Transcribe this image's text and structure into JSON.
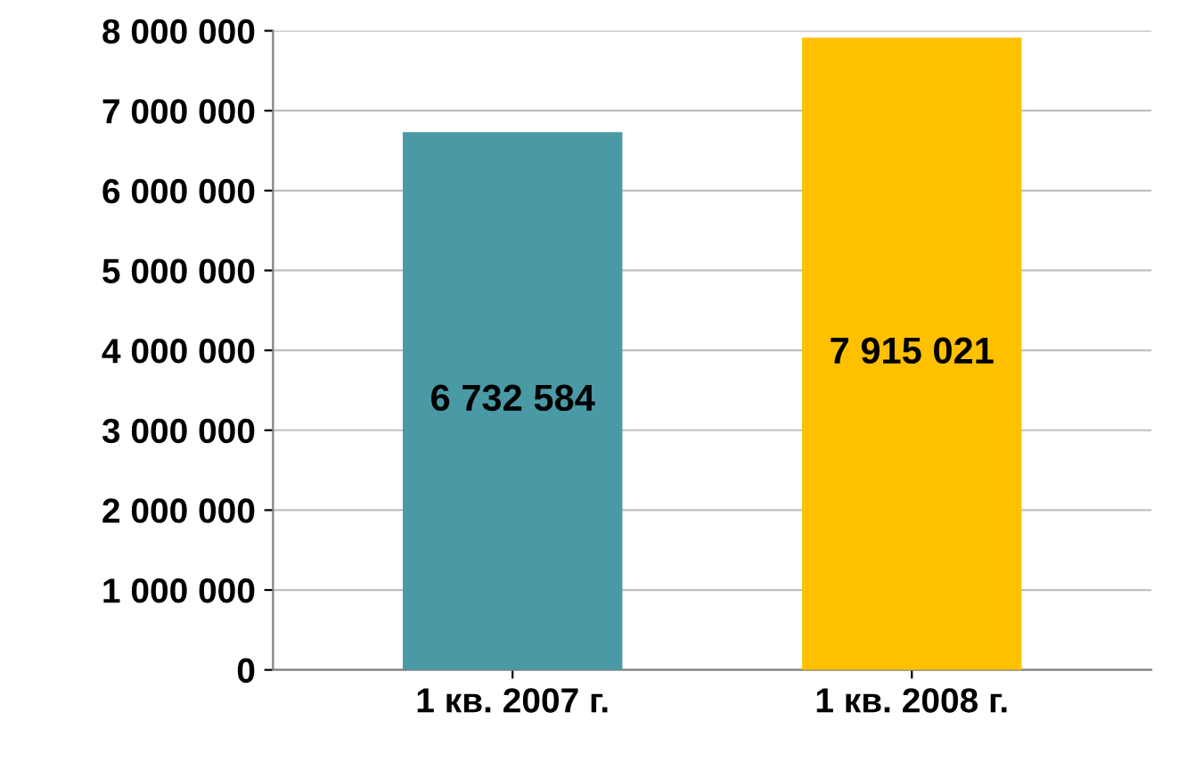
{
  "chart_data": {
    "type": "bar",
    "categories": [
      "1 кв. 2007 г.",
      "1 кв. 2008 г."
    ],
    "values": [
      6732584,
      7915021
    ],
    "colors": [
      "#4a9aa5",
      "#ffc000"
    ],
    "value_labels": [
      "6 732 584",
      "7 915 021"
    ],
    "ylim": [
      0,
      8000000
    ],
    "yticks": [
      {
        "value": 0,
        "label": "0"
      },
      {
        "value": 1000000,
        "label": "1 000 000"
      },
      {
        "value": 2000000,
        "label": "2 000 000"
      },
      {
        "value": 3000000,
        "label": "3 000 000"
      },
      {
        "value": 4000000,
        "label": "4 000 000"
      },
      {
        "value": 5000000,
        "label": "5 000 000"
      },
      {
        "value": 6000000,
        "label": "6 000 000"
      },
      {
        "value": 7000000,
        "label": "7 000 000"
      },
      {
        "value": 8000000,
        "label": "8 000 000"
      }
    ],
    "grid": "y"
  }
}
